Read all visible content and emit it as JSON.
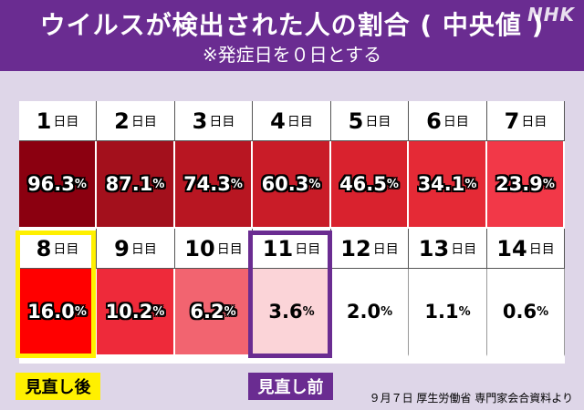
{
  "header": {
    "title": "ウイルスが検出された人の割合 ( 中央値 )",
    "subtitle": "※発症日を０日とする",
    "logo": "NHK"
  },
  "day_suffix": "日目",
  "pct_suffix": "%",
  "table": [
    {
      "day": "1",
      "value": "96.3",
      "color": "#8b0010"
    },
    {
      "day": "2",
      "value": "87.1",
      "color": "#a3101c"
    },
    {
      "day": "3",
      "value": "74.3",
      "color": "#b81622"
    },
    {
      "day": "4",
      "value": "60.3",
      "color": "#c91c28"
    },
    {
      "day": "5",
      "value": "46.5",
      "color": "#d9222e"
    },
    {
      "day": "6",
      "value": "34.1",
      "color": "#e52a36"
    },
    {
      "day": "7",
      "value": "23.9",
      "color": "#f23848"
    },
    {
      "day": "8",
      "value": "16.0",
      "color": "#ff0000"
    },
    {
      "day": "9",
      "value": "10.2",
      "color": "#ee2a3a"
    },
    {
      "day": "10",
      "value": "6.2",
      "color": "#f26470"
    },
    {
      "day": "11",
      "value": "3.6",
      "color": "#fbd4d8"
    },
    {
      "day": "12",
      "value": "2.0",
      "color": "#ffffff"
    },
    {
      "day": "13",
      "value": "1.1",
      "color": "#ffffff"
    },
    {
      "day": "14",
      "value": "0.6",
      "color": "#ffffff"
    }
  ],
  "labels": {
    "after_revision": "見直し後",
    "before_revision": "見直し前"
  },
  "source": "９月７日 厚生労働省 専門家会合資料より"
}
